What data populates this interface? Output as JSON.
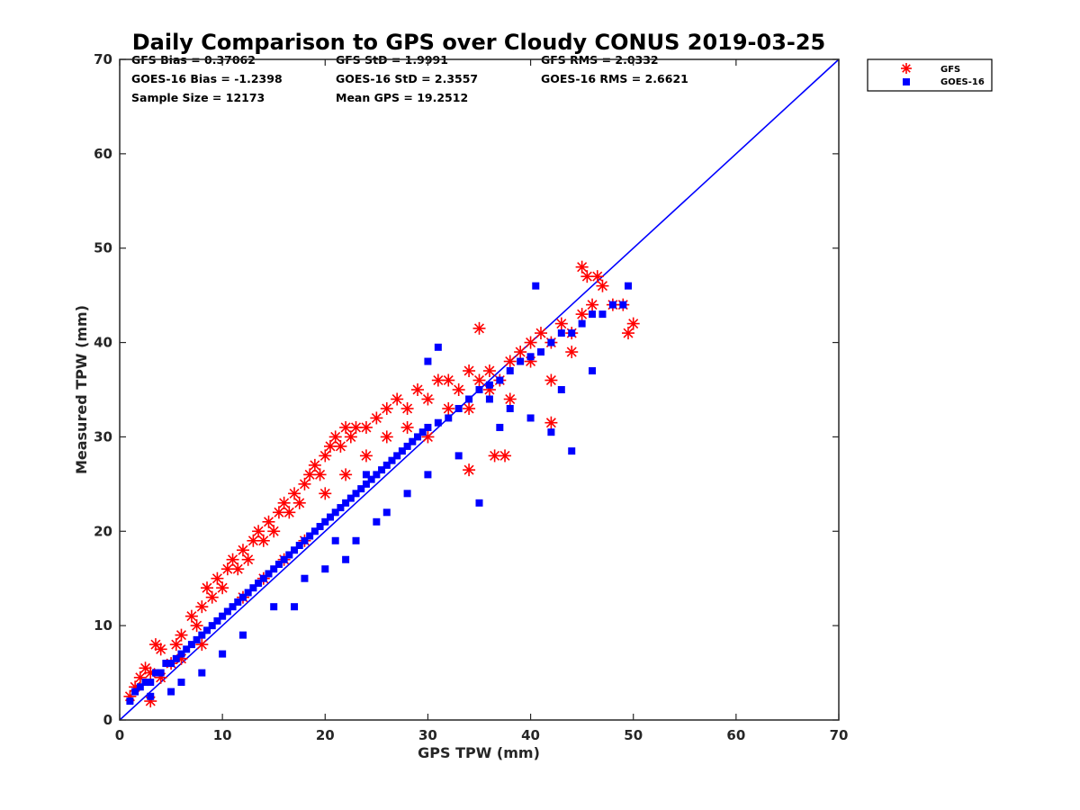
{
  "chart_data": {
    "type": "scatter",
    "title": "Daily Comparison to GPS over Cloudy CONUS 2019-03-25",
    "xlabel": "GPS TPW (mm)",
    "ylabel": "Measured TPW (mm)",
    "xlim": [
      0,
      70
    ],
    "ylim": [
      0,
      70
    ],
    "xticks": [
      "0",
      "10",
      "20",
      "30",
      "40",
      "50",
      "60",
      "70"
    ],
    "yticks": [
      "0",
      "10",
      "20",
      "30",
      "40",
      "50",
      "60",
      "70"
    ],
    "grid": false,
    "legend_position": "outside-top-right",
    "stats": [
      [
        "GFS Bias = 0.37062",
        "GFS StD = 1.9991",
        "GFS RMS = 2.0332"
      ],
      [
        "GOES-16 Bias = -1.2398",
        "GOES-16 StD = 2.3557",
        "GOES-16 RMS = 2.6621"
      ],
      [
        "Sample Size = 12173",
        "Mean GPS = 19.2512",
        ""
      ]
    ],
    "reference_line": {
      "x": [
        0,
        70
      ],
      "y": [
        0,
        70
      ],
      "color": "#0000ff"
    },
    "series": [
      {
        "name": "GFS",
        "marker": "asterisk",
        "color": "#ff0000",
        "points": [
          [
            1,
            2.5
          ],
          [
            1.5,
            3.5
          ],
          [
            2,
            4.5
          ],
          [
            2.5,
            5.5
          ],
          [
            3,
            5
          ],
          [
            3.5,
            8
          ],
          [
            4,
            7.5
          ],
          [
            3,
            2
          ],
          [
            5,
            6
          ],
          [
            5.5,
            8
          ],
          [
            6,
            9
          ],
          [
            7,
            11
          ],
          [
            7.5,
            10
          ],
          [
            8,
            12
          ],
          [
            8.5,
            14
          ],
          [
            9,
            13
          ],
          [
            9.5,
            15
          ],
          [
            10,
            14
          ],
          [
            10.5,
            16
          ],
          [
            11,
            17
          ],
          [
            11.5,
            16
          ],
          [
            12,
            18
          ],
          [
            12.5,
            17
          ],
          [
            13,
            19
          ],
          [
            13.5,
            20
          ],
          [
            14,
            19
          ],
          [
            14.5,
            21
          ],
          [
            15,
            20
          ],
          [
            15.5,
            22
          ],
          [
            16,
            23
          ],
          [
            16.5,
            22
          ],
          [
            17,
            24
          ],
          [
            17.5,
            23
          ],
          [
            18,
            25
          ],
          [
            18.5,
            26
          ],
          [
            19,
            27
          ],
          [
            19.5,
            26
          ],
          [
            20,
            28
          ],
          [
            20.5,
            29
          ],
          [
            21,
            30
          ],
          [
            21.5,
            29
          ],
          [
            22,
            31
          ],
          [
            22.5,
            30
          ],
          [
            23,
            31
          ],
          [
            24,
            31
          ],
          [
            25,
            32
          ],
          [
            26,
            33
          ],
          [
            27,
            34
          ],
          [
            28,
            33
          ],
          [
            29,
            35
          ],
          [
            30,
            34
          ],
          [
            31,
            36
          ],
          [
            32,
            36
          ],
          [
            33,
            35
          ],
          [
            34,
            37
          ],
          [
            35,
            36
          ],
          [
            36,
            37
          ],
          [
            37,
            36
          ],
          [
            38,
            38
          ],
          [
            39,
            39
          ],
          [
            40,
            40
          ],
          [
            41,
            41
          ],
          [
            42,
            40
          ],
          [
            43,
            42
          ],
          [
            44,
            41
          ],
          [
            45,
            43
          ],
          [
            46,
            44
          ],
          [
            45,
            48
          ],
          [
            45.5,
            47
          ],
          [
            46.5,
            47
          ],
          [
            47,
            46
          ],
          [
            48,
            44
          ],
          [
            49,
            44
          ],
          [
            49.5,
            41
          ],
          [
            50,
            42
          ],
          [
            35,
            41.5
          ],
          [
            34,
            26.5
          ],
          [
            36.5,
            28
          ],
          [
            37.5,
            28
          ],
          [
            42,
            31.5
          ],
          [
            20,
            24
          ],
          [
            22,
            26
          ],
          [
            24,
            28
          ],
          [
            26,
            30
          ],
          [
            28,
            31
          ],
          [
            30,
            30
          ],
          [
            32,
            33
          ],
          [
            34,
            33
          ],
          [
            36,
            35
          ],
          [
            38,
            34
          ],
          [
            40,
            38
          ],
          [
            42,
            36
          ],
          [
            44,
            39
          ],
          [
            12,
            13
          ],
          [
            14,
            15
          ],
          [
            16,
            17
          ],
          [
            18,
            19
          ],
          [
            8,
            8
          ],
          [
            6,
            6.5
          ],
          [
            4,
            4.5
          ]
        ]
      },
      {
        "name": "GOES-16",
        "marker": "square",
        "color": "#0000ff",
        "points": [
          [
            1,
            2
          ],
          [
            1.5,
            3
          ],
          [
            2,
            3.5
          ],
          [
            2.5,
            4
          ],
          [
            3,
            4
          ],
          [
            3.5,
            5
          ],
          [
            4,
            5
          ],
          [
            4.5,
            6
          ],
          [
            5,
            6
          ],
          [
            5.5,
            6.5
          ],
          [
            6,
            7
          ],
          [
            6.5,
            7.5
          ],
          [
            7,
            8
          ],
          [
            7.5,
            8.5
          ],
          [
            8,
            9
          ],
          [
            8.5,
            9.5
          ],
          [
            9,
            10
          ],
          [
            9.5,
            10.5
          ],
          [
            10,
            11
          ],
          [
            10.5,
            11.5
          ],
          [
            11,
            12
          ],
          [
            11.5,
            12.5
          ],
          [
            12,
            13
          ],
          [
            12.5,
            13.5
          ],
          [
            13,
            14
          ],
          [
            13.5,
            14.5
          ],
          [
            14,
            15
          ],
          [
            14.5,
            15.5
          ],
          [
            15,
            16
          ],
          [
            15.5,
            16.5
          ],
          [
            16,
            17
          ],
          [
            16.5,
            17.5
          ],
          [
            17,
            18
          ],
          [
            17.5,
            18.5
          ],
          [
            18,
            19
          ],
          [
            18.5,
            19.5
          ],
          [
            19,
            20
          ],
          [
            19.5,
            20.5
          ],
          [
            20,
            21
          ],
          [
            20.5,
            21.5
          ],
          [
            21,
            22
          ],
          [
            21.5,
            22.5
          ],
          [
            22,
            23
          ],
          [
            22.5,
            23.5
          ],
          [
            23,
            24
          ],
          [
            23.5,
            24.5
          ],
          [
            24,
            25
          ],
          [
            24.5,
            25.5
          ],
          [
            25,
            26
          ],
          [
            25.5,
            26.5
          ],
          [
            26,
            27
          ],
          [
            26.5,
            27.5
          ],
          [
            27,
            28
          ],
          [
            27.5,
            28.5
          ],
          [
            28,
            29
          ],
          [
            28.5,
            29.5
          ],
          [
            29,
            30
          ],
          [
            29.5,
            30.5
          ],
          [
            30,
            31
          ],
          [
            31,
            31.5
          ],
          [
            32,
            32
          ],
          [
            33,
            33
          ],
          [
            34,
            34
          ],
          [
            35,
            35
          ],
          [
            36,
            35.5
          ],
          [
            37,
            36
          ],
          [
            38,
            37
          ],
          [
            39,
            38
          ],
          [
            40,
            38.5
          ],
          [
            41,
            39
          ],
          [
            42,
            40
          ],
          [
            43,
            41
          ],
          [
            44,
            41
          ],
          [
            45,
            42
          ],
          [
            46,
            43
          ],
          [
            47,
            43
          ],
          [
            48,
            44
          ],
          [
            49,
            44
          ],
          [
            49.5,
            46
          ],
          [
            40.5,
            46
          ],
          [
            31,
            39.5
          ],
          [
            30,
            38
          ],
          [
            24,
            26
          ],
          [
            21,
            19
          ],
          [
            18,
            15
          ],
          [
            15,
            12
          ],
          [
            12,
            9
          ],
          [
            10,
            7
          ],
          [
            8,
            5
          ],
          [
            6,
            4
          ],
          [
            5,
            3
          ],
          [
            3,
            2.5
          ],
          [
            22,
            17
          ],
          [
            20,
            16
          ],
          [
            17,
            12
          ],
          [
            35,
            23
          ],
          [
            44,
            28.5
          ],
          [
            36,
            34
          ],
          [
            38,
            33
          ],
          [
            42,
            30.5
          ],
          [
            28,
            24
          ],
          [
            26,
            22
          ],
          [
            30,
            26
          ],
          [
            33,
            28
          ],
          [
            37,
            31
          ],
          [
            40,
            32
          ],
          [
            43,
            35
          ],
          [
            46,
            37
          ],
          [
            25,
            21
          ],
          [
            23,
            19
          ]
        ]
      }
    ]
  }
}
